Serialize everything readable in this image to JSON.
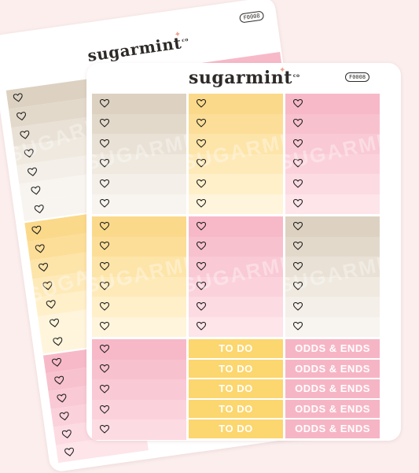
{
  "back_sheet": {
    "brand": "sugarmint",
    "brand_suffix": "co",
    "code": "F0008"
  },
  "front_sheet": {
    "brand": "sugarmint",
    "brand_suffix": "co",
    "code": "F0008"
  },
  "watermark_text": "SUGARMINT",
  "todo_label": "TO DO",
  "odds_label": "ODDS & ENDS",
  "icons": {
    "checkbox": "heart-outline-icon",
    "star": "star-icon"
  },
  "colors": {
    "background": "#fbeeed",
    "beige": [
      "#ddd2c2",
      "#e3d9cb",
      "#e9e1d5",
      "#efe9df",
      "#f4efe8",
      "#f8f5f0"
    ],
    "yellow": [
      "#fbd98a",
      "#fcde98",
      "#fde4a8",
      "#feeab9",
      "#fff0ca",
      "#fff5dc"
    ],
    "pink": [
      "#f7b9c8",
      "#f8c1ce",
      "#f9c9d5",
      "#fbd2dc",
      "#fcdbe3",
      "#fde5ea"
    ]
  }
}
